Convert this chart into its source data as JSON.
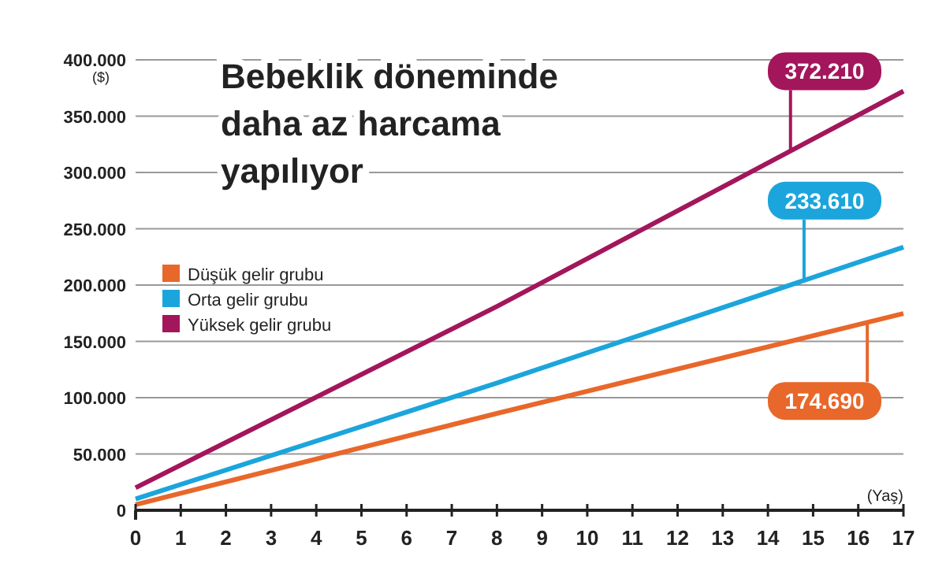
{
  "chart_data": {
    "type": "line",
    "title": "Bebeklik döneminde daha az harcama yapılıyor",
    "xlabel": "(Yaş)",
    "ylabel": "($)",
    "x": [
      0,
      8,
      17
    ],
    "series": [
      {
        "name": "Düşük gelir grubu",
        "color": "#e8672a",
        "values": [
          5000,
          86000,
          174690
        ]
      },
      {
        "name": "Orta gelir grubu",
        "color": "#1ba5dc",
        "values": [
          10000,
          113000,
          233610
        ]
      },
      {
        "name": "Yüksek gelir grubu",
        "color": "#a3165b",
        "values": [
          20000,
          181000,
          372210
        ]
      }
    ],
    "xlim": [
      0,
      17
    ],
    "xticks": [
      0,
      1,
      2,
      3,
      4,
      5,
      6,
      7,
      8,
      9,
      10,
      11,
      12,
      13,
      14,
      15,
      16,
      17
    ],
    "ylim": [
      0,
      400000
    ],
    "yticks": [
      {
        "value": 0,
        "label": "0"
      },
      {
        "value": 50000,
        "label": "50.000"
      },
      {
        "value": 100000,
        "label": "100.000"
      },
      {
        "value": 150000,
        "label": "150.000"
      },
      {
        "value": 200000,
        "label": "200.000"
      },
      {
        "value": 250000,
        "label": "250.000"
      },
      {
        "value": 300000,
        "label": "300.000"
      },
      {
        "value": 350000,
        "label": "350.000"
      },
      {
        "value": 400000,
        "label": "400.000"
      }
    ],
    "grid": "y",
    "legend": "left",
    "marker": "none",
    "line_style": "solid",
    "annotations": [
      {
        "text": "372.210",
        "x": 14.5,
        "y": 320000
      },
      {
        "text": "233.610",
        "x": 14.8,
        "y": 205000
      },
      {
        "text": "174.690",
        "x": 16.2,
        "y": 167000
      }
    ]
  }
}
